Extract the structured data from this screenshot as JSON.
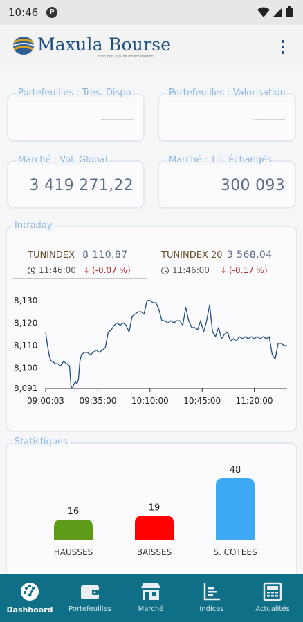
{
  "status_bar": {
    "time": "10:46",
    "badge": "P"
  },
  "header": {
    "logo_text": "Maxula Bourse",
    "tagline": "Bien plus qu'une intermédiation"
  },
  "cards": [
    {
      "label": "Portefeuilles : Trés. Dispo",
      "value": "----------"
    },
    {
      "label": "Portefeuilles : Valorisation",
      "value": "----------"
    },
    {
      "label": "Marché : Vol. Global",
      "value": "3 419 271,22"
    },
    {
      "label": "Marché : TiT. Échangés",
      "value": "300 093"
    }
  ],
  "intraday": {
    "title": "Intraday",
    "indices": [
      {
        "name": "TUNINDEX",
        "value": "8 110,87",
        "time": "11:46:00",
        "change": "(-0.07 %)"
      },
      {
        "name": "TUNINDEX 20",
        "value": "3 568,04",
        "time": "11:46:00",
        "change": "(-0.17 %)"
      }
    ]
  },
  "chart_data": [
    {
      "type": "line",
      "title": "",
      "xlabel": "",
      "ylabel": "",
      "x_ticks": [
        "09:00:03",
        "09:35:00",
        "10:10:00",
        "10:45:00",
        "11:20:00"
      ],
      "y_ticks": [
        "8,130",
        "8,120",
        "8,110",
        "8,100",
        "8,091"
      ],
      "ylim": [
        8091,
        8133
      ],
      "series": [
        {
          "color": "#1f4c80",
          "x_minutes": [
            0,
            1,
            2,
            3,
            4,
            5,
            6,
            8,
            10,
            12,
            14,
            16,
            17,
            18,
            19,
            20,
            21,
            22,
            23,
            24,
            26,
            28,
            30,
            32,
            34,
            36,
            38,
            40,
            42,
            44,
            46,
            48,
            50,
            52,
            54,
            56,
            58,
            60,
            62,
            64,
            66,
            68,
            70,
            72,
            74,
            76,
            78,
            80,
            82,
            84,
            86,
            88,
            90,
            92,
            94,
            96,
            98,
            100,
            102,
            104,
            106,
            108,
            110,
            112,
            114,
            116,
            118,
            120,
            122,
            124,
            126,
            128,
            130,
            132,
            134,
            136,
            138,
            140,
            142,
            144,
            146,
            148,
            150,
            152,
            154,
            156,
            158,
            160,
            162
          ],
          "values": [
            8116,
            8111,
            8107,
            8104,
            8103,
            8103,
            8102,
            8102,
            8101,
            8103,
            8102,
            8101,
            8092,
            8091,
            8093,
            8094,
            8093,
            8095,
            8103,
            8106,
            8107,
            8107,
            8106,
            8107,
            8108,
            8107,
            8108,
            8109,
            8116,
            8117,
            8119,
            8120,
            8119,
            8120,
            8119,
            8116,
            8123,
            8124,
            8125,
            8125,
            8124,
            8130,
            8130,
            8129,
            8129,
            8126,
            8121,
            8121,
            8120,
            8121,
            8120,
            8121,
            8121,
            8119,
            8127,
            8121,
            8118,
            8118,
            8117,
            8121,
            8116,
            8121,
            8128,
            8116,
            8114,
            8118,
            8113,
            8115,
            8116,
            8112,
            8113,
            8112,
            8114,
            8113,
            8114,
            8113,
            8114,
            8113,
            8114,
            8113,
            8114,
            8113,
            8114,
            8106,
            8104,
            8111,
            8111,
            8110,
            8110
          ]
        }
      ]
    },
    {
      "type": "bar",
      "title": "Statistiques",
      "categories": [
        "HAUSSES",
        "BAISSES",
        "S. COTÉES"
      ],
      "values": [
        16,
        19,
        48
      ],
      "colors": [
        "#5e9b18",
        "#ff0000",
        "#3ea9f5"
      ]
    }
  ],
  "bottom_nav": [
    {
      "label": "Dashboard",
      "icon": "dashboard-icon",
      "active": true
    },
    {
      "label": "Portefeuilles",
      "icon": "wallet-icon",
      "active": false
    },
    {
      "label": "Marché",
      "icon": "market-icon",
      "active": false
    },
    {
      "label": "Indices",
      "icon": "indices-chart-icon",
      "active": false
    },
    {
      "label": "Actualités",
      "icon": "news-icon",
      "active": false
    }
  ]
}
